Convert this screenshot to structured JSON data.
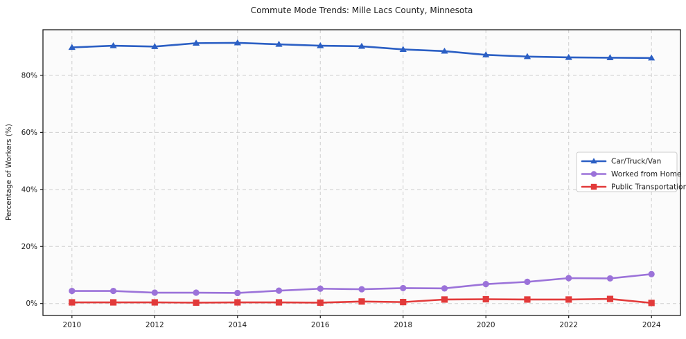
{
  "chart_data": {
    "type": "line",
    "title": "Commute Mode Trends: Mille Lacs County, Minnesota",
    "xlabel": "",
    "ylabel": "Percentage of Workers (%)",
    "x": [
      2010,
      2011,
      2012,
      2013,
      2014,
      2015,
      2016,
      2017,
      2018,
      2019,
      2020,
      2021,
      2022,
      2023,
      2024
    ],
    "series": [
      {
        "name": "Car/Truck/Van",
        "marker": "triangle",
        "color": "#2b5fc4",
        "values": [
          89.8,
          90.4,
          90.1,
          91.3,
          91.4,
          90.9,
          90.4,
          90.2,
          89.1,
          88.5,
          87.2,
          86.6,
          86.3,
          86.2,
          86.1
        ]
      },
      {
        "name": "Worked from Home",
        "marker": "circle",
        "color": "#9b72d9",
        "values": [
          4.4,
          4.4,
          3.8,
          3.8,
          3.7,
          4.5,
          5.2,
          5.0,
          5.4,
          5.3,
          6.8,
          7.6,
          8.9,
          8.8,
          10.3
        ]
      },
      {
        "name": "Public Transportation",
        "marker": "square",
        "color": "#e23a3a",
        "values": [
          0.4,
          0.4,
          0.4,
          0.3,
          0.4,
          0.4,
          0.3,
          0.7,
          0.5,
          1.4,
          1.5,
          1.4,
          1.4,
          1.6,
          0.2
        ]
      }
    ],
    "xticks": [
      2010,
      2012,
      2014,
      2016,
      2018,
      2020,
      2022,
      2024
    ],
    "xtick_labels": [
      "2010",
      "2012",
      "2014",
      "2016",
      "2018",
      "2020",
      "2022",
      "2024"
    ],
    "yticks": [
      0,
      20,
      40,
      60,
      80
    ],
    "ytick_labels": [
      "0%",
      "20%",
      "40%",
      "60%",
      "80%"
    ],
    "xlim": [
      2009.3,
      2024.7
    ],
    "ylim": [
      -4.2,
      96
    ],
    "grid": true,
    "grid_style": "dashed",
    "legend_position": "center right",
    "colors": {
      "grid": "#cfcfcf",
      "spine": "#1a1a1a",
      "plot_background": "#fbfbfb",
      "tick_label": "#1c1c1c",
      "legend_border": "#cccccc",
      "legend_background": "#ffffff"
    }
  }
}
